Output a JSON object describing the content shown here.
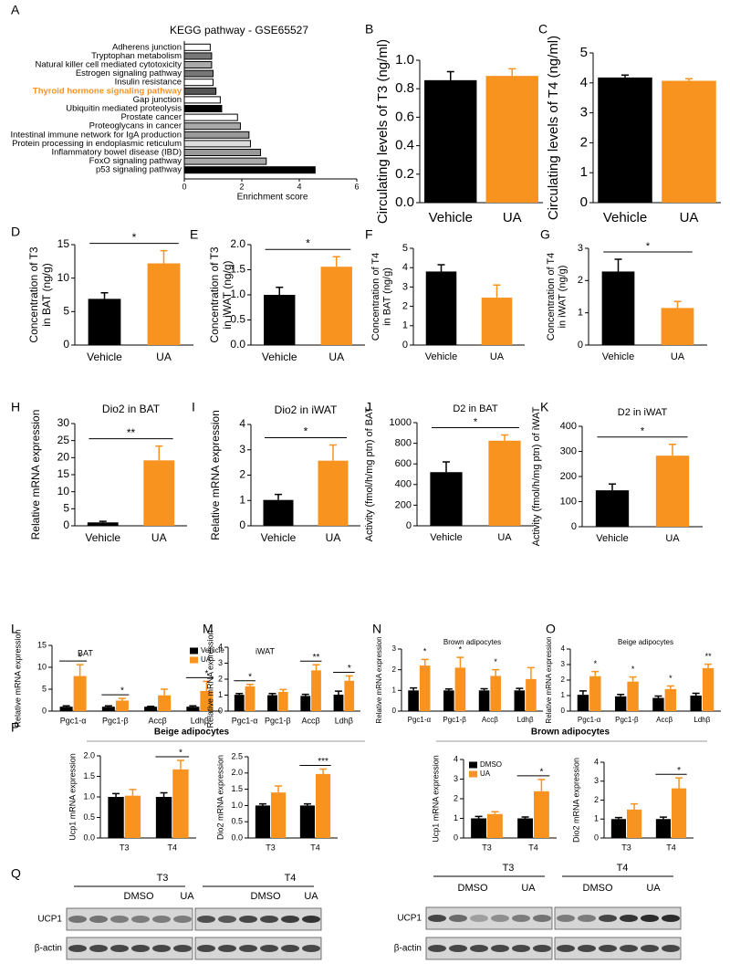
{
  "chart_data": [
    {
      "type": "barh",
      "label": "A",
      "title": "KEGG pathway - GSE65527",
      "xlabel": "Enrichment score",
      "categories": [
        "Adherens junction",
        "Tryptophan metabolism",
        "Natural killer cell mediated cytotoxicity",
        "Estrogen signaling pathway",
        "Insulin resistance",
        "Thyroid hormone signaling pathway",
        "Gap junction",
        "Ubiquitin mediated proteolysis",
        "Prostate cancer",
        "Proteoglycans in cancer",
        "Intestinal immune network for IgA production",
        "Protein processing in endoplasmic reticulum",
        "Inflammatory bowel disease (IBD)",
        "FoxO signaling pathway",
        "p53 signaling pathway"
      ],
      "values": [
        0.9,
        0.95,
        0.95,
        1.0,
        1.0,
        1.1,
        1.25,
        1.3,
        1.85,
        1.95,
        2.25,
        2.3,
        2.65,
        2.85,
        4.55
      ],
      "colors": [
        "#ffffff",
        "#777777",
        "#aaaaaa",
        "#777777",
        "#ffffff",
        "#555555",
        "#ffffff",
        "#000000",
        "#ffffff",
        "#aaaaaa",
        "#999999",
        "#dddddd",
        "#999999",
        "#aaaaaa",
        "#000000"
      ],
      "highlight_index": 5,
      "highlight_color": "#f7931e",
      "xlim": [
        0,
        6
      ],
      "xticks": [
        0,
        2,
        4,
        6
      ]
    },
    {
      "type": "bar",
      "label": "B",
      "ylabel": "Circulating levels of T3 (ng/ml)",
      "categories": [
        "Vehicle",
        "UA"
      ],
      "values": [
        0.86,
        0.89
      ],
      "errors": [
        0.06,
        0.05
      ],
      "colors": [
        "#000000",
        "#f7931e"
      ],
      "ylim": [
        0,
        1
      ],
      "yticks": [
        {
          "value": 0,
          "label": "0.0"
        },
        0.2,
        0.4,
        0.6,
        0.8,
        {
          "value": 1,
          "label": "1.0"
        }
      ]
    },
    {
      "type": "bar",
      "label": "C",
      "ylabel": "Circulating levels of T4 (ng/ml)",
      "categories": [
        "Vehicle",
        "UA"
      ],
      "values": [
        4.18,
        4.07
      ],
      "errors": [
        0.08,
        0.07
      ],
      "colors": [
        "#000000",
        "#f7931e"
      ],
      "ylim": [
        0,
        5
      ],
      "yticks": [
        0,
        1,
        2,
        3,
        4,
        5
      ]
    },
    {
      "type": "bar",
      "label": "D",
      "ylabel": [
        "Concentration of T3",
        "in BAT (ng/g)"
      ],
      "categories": [
        "Vehicle",
        "UA"
      ],
      "values": [
        6.9,
        12.2
      ],
      "errors": [
        0.9,
        1.9
      ],
      "colors": [
        "#000000",
        "#f7931e"
      ],
      "sig": "*",
      "ylim": [
        0,
        15
      ],
      "yticks": [
        0,
        5,
        10,
        15
      ]
    },
    {
      "type": "bar",
      "label": "E",
      "ylabel": [
        "Concentration of T3",
        "in iWAT (ng/g)"
      ],
      "categories": [
        "Vehicle",
        "UA"
      ],
      "values": [
        1.0,
        1.56
      ],
      "errors": [
        0.15,
        0.2
      ],
      "colors": [
        "#000000",
        "#f7931e"
      ],
      "sig": "*",
      "ylim": [
        0,
        2
      ],
      "yticks": [
        {
          "value": 0,
          "label": "0.0"
        },
        0.5,
        {
          "value": 1,
          "label": "1.0"
        },
        1.5,
        {
          "value": 2,
          "label": "2.0"
        }
      ]
    },
    {
      "type": "bar",
      "label": "F",
      "ylabel": [
        "Concentration of T4",
        "in BAT (ng/g)"
      ],
      "categories": [
        "Vehicle",
        "UA"
      ],
      "values": [
        3.8,
        2.45
      ],
      "errors": [
        0.35,
        0.65
      ],
      "colors": [
        "#000000",
        "#f7931e"
      ],
      "ylim": [
        0,
        5
      ],
      "yticks": [
        0,
        1,
        2,
        3,
        4,
        5
      ]
    },
    {
      "type": "bar",
      "label": "G",
      "ylabel": [
        "Concentration of T4",
        "in iWAT (ng/g)"
      ],
      "categories": [
        "Vehicle",
        "UA"
      ],
      "values": [
        2.28,
        1.15
      ],
      "errors": [
        0.38,
        0.2
      ],
      "colors": [
        "#000000",
        "#f7931e"
      ],
      "sig": "*",
      "ylim": [
        0,
        3
      ],
      "yticks": [
        0,
        1,
        2,
        3
      ]
    },
    {
      "type": "bar",
      "label": "H",
      "title": "Dio2 in BAT",
      "ylabel": "Relative mRNA expression",
      "categories": [
        "Vehicle",
        "UA"
      ],
      "values": [
        1.0,
        19.2
      ],
      "errors": [
        0.3,
        4.2
      ],
      "colors": [
        "#000000",
        "#f7931e"
      ],
      "sig": "**",
      "ylim": [
        0,
        30
      ],
      "yticks": [
        0,
        5,
        10,
        15,
        20,
        25,
        30
      ]
    },
    {
      "type": "bar",
      "label": "I",
      "title": "Dio2 in iWAT",
      "ylabel": "Relative mRNA expression",
      "categories": [
        "Vehicle",
        "UA"
      ],
      "values": [
        1.02,
        2.57
      ],
      "errors": [
        0.22,
        0.62
      ],
      "colors": [
        "#000000",
        "#f7931e"
      ],
      "sig": "*",
      "ylim": [
        0,
        4
      ],
      "yticks": [
        0,
        1,
        2,
        3,
        4
      ]
    },
    {
      "type": "bar",
      "label": "J",
      "title": "D2 in BAT",
      "ylabel": "Activity (fmol/h/mg ptn) of BAT",
      "categories": [
        "Vehicle",
        "UA"
      ],
      "values": [
        520,
        825
      ],
      "errors": [
        100,
        55
      ],
      "colors": [
        "#000000",
        "#f7931e"
      ],
      "sig": "*",
      "ylim": [
        0,
        1000
      ],
      "yticks": [
        0,
        200,
        400,
        600,
        800,
        1000
      ]
    },
    {
      "type": "bar",
      "label": "K",
      "title": "D2 in iWAT",
      "ylabel": "Activity (fmol/h/mg ptn) of iWAT",
      "categories": [
        "Vehicle",
        "UA"
      ],
      "values": [
        145,
        283
      ],
      "errors": [
        25,
        45
      ],
      "colors": [
        "#000000",
        "#f7931e"
      ],
      "sig": "*",
      "ylim": [
        0,
        400
      ],
      "yticks": [
        0,
        100,
        200,
        300,
        400
      ]
    },
    {
      "type": "bar",
      "label": "L",
      "title": "BAT",
      "ylabel": "Relative mRNA expression",
      "categories": [
        "Pgc1-α",
        "Pgc1-β",
        "Accβ",
        "Ldhβ"
      ],
      "series": [
        {
          "name": "Vehicle",
          "color": "#000000",
          "values": [
            1.0,
            1.0,
            1.0,
            1.0
          ],
          "errors": [
            0.2,
            0.2,
            0.1,
            0.2
          ]
        },
        {
          "name": "UA",
          "color": "#f7931e",
          "values": [
            8.0,
            2.4,
            3.6,
            4.6
          ],
          "errors": [
            2.6,
            0.5,
            1.4,
            2.2
          ]
        }
      ],
      "sig": [
        "*",
        "*",
        null,
        "*"
      ],
      "legend": "upper right",
      "ylim": [
        0,
        15
      ],
      "yticks": [
        0,
        5,
        10,
        15
      ]
    },
    {
      "type": "bar",
      "label": "M",
      "title": "iWAT",
      "ylabel": "Relative mRNA expression",
      "categories": [
        "Pgc1-α",
        "Pgc1-β",
        "Accβ",
        "Ldhβ"
      ],
      "series": [
        {
          "name": "Vehicle",
          "color": "#000000",
          "values": [
            1.02,
            1.0,
            0.95,
            1.03
          ],
          "errors": [
            0.08,
            0.1,
            0.1,
            0.22
          ]
        },
        {
          "name": "UA",
          "color": "#f7931e",
          "values": [
            1.55,
            1.2,
            2.55,
            1.9
          ],
          "errors": [
            0.12,
            0.15,
            0.35,
            0.3
          ]
        }
      ],
      "sig": [
        "*",
        null,
        "**",
        "*"
      ],
      "ylim": [
        0,
        4
      ],
      "yticks": [
        0,
        1,
        2,
        3,
        4
      ]
    },
    {
      "type": "bar",
      "label": "N",
      "title": "Brown adipocytes",
      "ylabel": "Relative mRNA expression",
      "categories": [
        "Pgc1-α",
        "Pgc1-β",
        "Accβ",
        "Ldhβ"
      ],
      "series": [
        {
          "name": "Vehicle",
          "color": "#000000",
          "values": [
            1.0,
            1.0,
            1.0,
            1.0
          ],
          "errors": [
            0.12,
            0.07,
            0.08,
            0.1
          ]
        },
        {
          "name": "UA",
          "color": "#f7931e",
          "values": [
            2.2,
            2.1,
            1.7,
            1.55
          ],
          "errors": [
            0.3,
            0.5,
            0.3,
            0.55
          ]
        }
      ],
      "sig": [
        "*",
        "*",
        "*",
        null
      ],
      "ylim": [
        0,
        3
      ],
      "yticks": [
        0,
        1,
        2,
        3
      ]
    },
    {
      "type": "bar",
      "label": "O",
      "title": "Beige adipocytes",
      "ylabel": "Relative mRNA expression",
      "categories": [
        "Pgc1-α",
        "Pgc1-β",
        "Accβ",
        "Ldhβ"
      ],
      "series": [
        {
          "name": "Vehicle",
          "color": "#000000",
          "values": [
            1.05,
            0.95,
            0.85,
            1.0
          ],
          "errors": [
            0.25,
            0.12,
            0.12,
            0.15
          ]
        },
        {
          "name": "UA",
          "color": "#f7931e",
          "values": [
            2.25,
            1.9,
            1.42,
            2.77
          ],
          "errors": [
            0.3,
            0.3,
            0.2,
            0.25
          ]
        }
      ],
      "sig": [
        "*",
        "*",
        "*",
        "**"
      ],
      "ylim": [
        0,
        4
      ],
      "yticks": [
        0,
        1,
        2,
        3,
        4
      ]
    },
    {
      "type": "bar",
      "label": "P",
      "group": "Beige adipocytes",
      "ylabel": "Ucp1 mRNA expression",
      "categories": [
        "T3",
        "T4"
      ],
      "series": [
        {
          "name": "DMSO",
          "color": "#000000",
          "values": [
            1.0,
            1.0
          ],
          "errors": [
            0.08,
            0.1
          ]
        },
        {
          "name": "UA",
          "color": "#f7931e",
          "values": [
            1.03,
            1.67
          ],
          "errors": [
            0.15,
            0.22
          ]
        }
      ],
      "sig": [
        null,
        "*"
      ],
      "ylim": [
        0,
        2
      ],
      "yticks": [
        {
          "value": 0,
          "label": "0.0"
        },
        0.5,
        {
          "value": 1,
          "label": "1.0"
        },
        1.5,
        {
          "value": 2,
          "label": "2.0"
        }
      ]
    },
    {
      "type": "bar",
      "ylabel": "Dio2 mRNA expression",
      "categories": [
        "T3",
        "T4"
      ],
      "series": [
        {
          "name": "DMSO",
          "color": "#000000",
          "values": [
            1.0,
            1.0
          ],
          "errors": [
            0.05,
            0.05
          ]
        },
        {
          "name": "UA",
          "color": "#f7931e",
          "values": [
            1.4,
            1.97
          ],
          "errors": [
            0.2,
            0.15
          ]
        }
      ],
      "sig": [
        null,
        "***"
      ],
      "ylim": [
        0,
        2.5
      ],
      "yticks": [
        {
          "value": 0,
          "label": "0.0"
        },
        0.5,
        {
          "value": 1,
          "label": "1.0"
        },
        1.5,
        {
          "value": 2,
          "label": "2.0"
        },
        2.5
      ]
    },
    {
      "type": "bar",
      "group": "Brown adipocytes",
      "ylabel": "Ucp1 mRNA expression",
      "categories": [
        "T3",
        "T4"
      ],
      "series": [
        {
          "name": "DMSO",
          "color": "#000000",
          "values": [
            1.0,
            1.0
          ],
          "errors": [
            0.1,
            0.07
          ]
        },
        {
          "name": "UA",
          "color": "#f7931e",
          "values": [
            1.22,
            2.38
          ],
          "errors": [
            0.12,
            0.6
          ]
        }
      ],
      "sig": [
        null,
        "*"
      ],
      "legend": "upper left",
      "ylim": [
        0,
        4
      ],
      "yticks": [
        0,
        1,
        2,
        3,
        4
      ]
    },
    {
      "type": "bar",
      "ylabel": "Dio2 mRNA expression",
      "categories": [
        "T3",
        "T4"
      ],
      "series": [
        {
          "name": "DMSO",
          "color": "#000000",
          "values": [
            1.0,
            1.0
          ],
          "errors": [
            0.08,
            0.1
          ]
        },
        {
          "name": "UA",
          "color": "#f7931e",
          "values": [
            1.5,
            2.62
          ],
          "errors": [
            0.3,
            0.55
          ]
        }
      ],
      "sig": [
        null,
        "*"
      ],
      "ylim": [
        0,
        4
      ],
      "yticks": [
        0,
        1,
        2,
        3,
        4
      ]
    }
  ],
  "blots": {
    "label": "Q",
    "panels": [
      {
        "groups": [
          "T3",
          "T4"
        ],
        "lanes": [
          "DMSO",
          "UA",
          "DMSO",
          "UA"
        ],
        "rows": [
          "UCP1",
          "β-actin"
        ]
      },
      {
        "groups": [
          "T3",
          "T4"
        ],
        "lanes": [
          "DMSO",
          "UA",
          "DMSO",
          "UA"
        ],
        "rows": [
          "UCP1",
          "β-actin"
        ]
      }
    ]
  }
}
